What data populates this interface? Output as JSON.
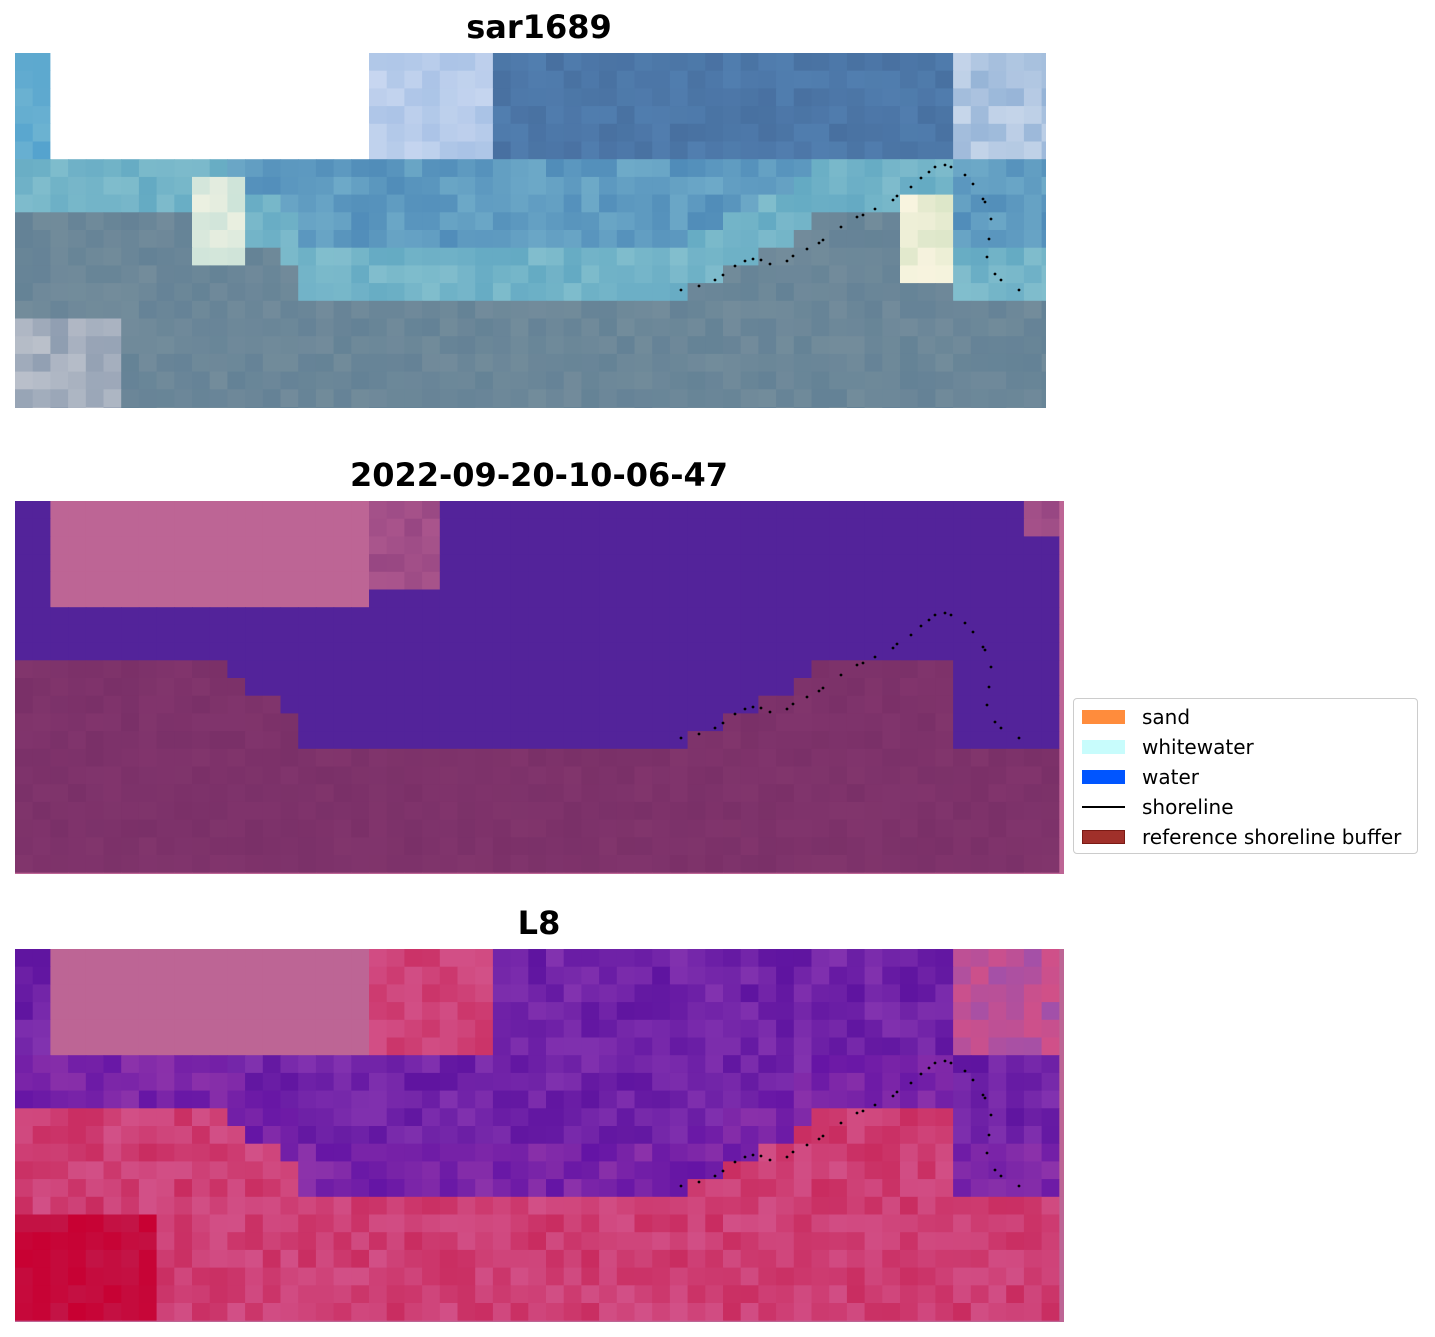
{
  "panels": [
    {
      "title": "sar1689",
      "image": "RGB satellite image of coast"
    },
    {
      "title": "2022-09-20-10-06-47",
      "image": "classified water/land overlay"
    },
    {
      "title": "L8",
      "image": "index gradient overlay"
    }
  ],
  "legend": {
    "items": [
      {
        "label": "sand",
        "color": "#ff8c3c",
        "kind": "patch"
      },
      {
        "label": "whitewater",
        "color": "#c8fcfc",
        "kind": "patch"
      },
      {
        "label": "water",
        "color": "#0055ff",
        "kind": "patch"
      },
      {
        "label": "shoreline",
        "color": "#000000",
        "kind": "line"
      },
      {
        "label": "reference shoreline buffer",
        "color": "#a0302a",
        "kind": "patch",
        "edge": "#7a1a14"
      }
    ]
  },
  "colors": {
    "water_class": "#53239a",
    "land_class": "#7a3068",
    "mask": "#bd6595",
    "shoreline_dots": "#000000"
  }
}
